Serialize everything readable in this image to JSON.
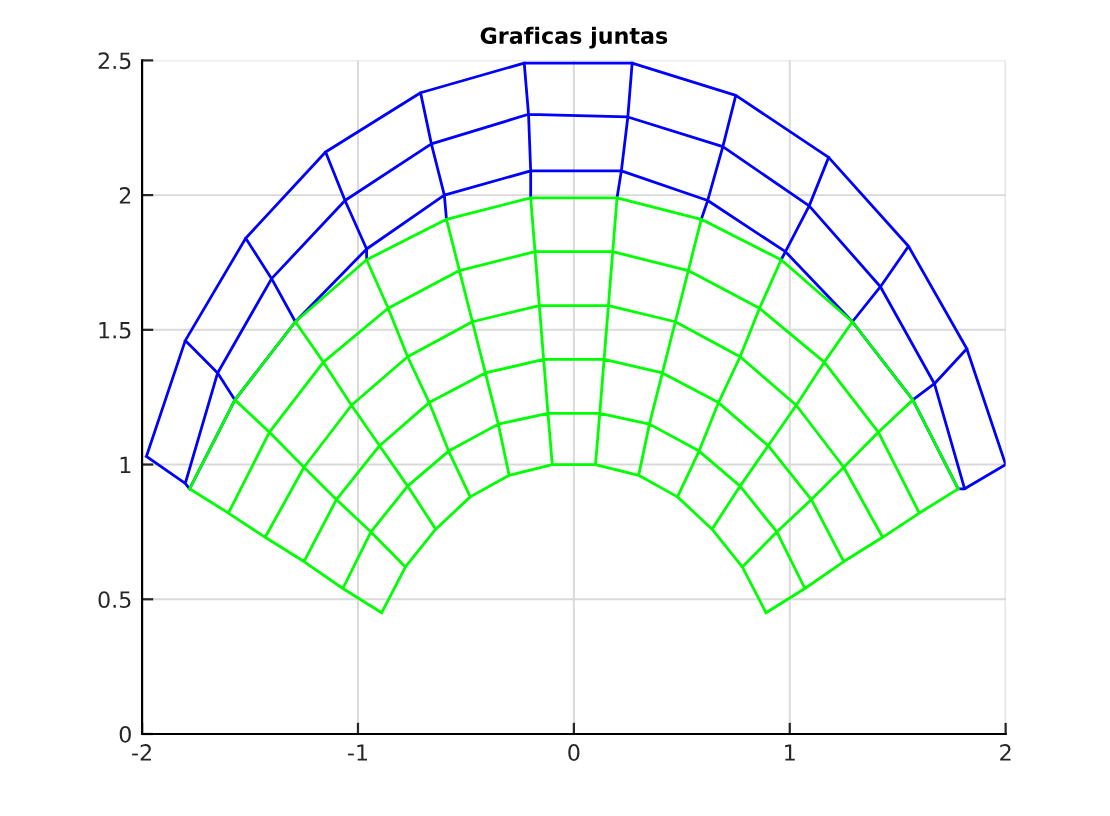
{
  "chart_data": {
    "type": "line",
    "title": "Graficas juntas",
    "xlim": [
      -2,
      2
    ],
    "ylim": [
      0,
      2.5
    ],
    "xticks": [
      -2,
      -1,
      0,
      1,
      2
    ],
    "yticks": [
      0,
      0.5,
      1,
      1.5,
      2,
      2.5
    ],
    "grid": true,
    "line_style": "solid",
    "series": [
      {
        "color": "#0000ff",
        "x": [
          -1.98,
          -1.8,
          -1.52,
          -1.15,
          -0.71,
          -0.23,
          0.27,
          0.75,
          1.18,
          1.55,
          1.82,
          2.0,
          null,
          -1.8,
          -1.65,
          -1.4,
          -1.06,
          -0.66,
          -0.21,
          0.25,
          0.69,
          1.09,
          1.42,
          1.67,
          1.81,
          null,
          -1.78,
          -1.57,
          -1.29,
          -0.96,
          -0.6,
          -0.2,
          0.22,
          0.62,
          0.98,
          1.29,
          1.57,
          1.78,
          null,
          -1.98,
          -1.8,
          -1.78,
          null,
          -1.8,
          -1.65,
          -1.57,
          null,
          -1.52,
          -1.4,
          -1.29,
          null,
          -1.15,
          -1.06,
          -0.96,
          -0.96,
          null,
          -0.71,
          -0.66,
          -0.6,
          -0.59,
          null,
          -0.23,
          -0.21,
          -0.2,
          -0.2,
          null,
          0.27,
          0.25,
          0.22,
          0.2,
          null,
          0.75,
          0.69,
          0.62,
          0.59,
          null,
          1.18,
          1.09,
          0.98,
          0.96,
          null,
          1.55,
          1.42,
          1.29,
          null,
          1.82,
          1.67,
          1.57,
          null,
          2.0,
          1.81,
          1.78
        ],
        "values": [
          1.03,
          1.46,
          1.84,
          2.16,
          2.38,
          2.49,
          2.49,
          2.37,
          2.14,
          1.81,
          1.43,
          1.0,
          null,
          0.93,
          1.34,
          1.69,
          1.98,
          2.19,
          2.3,
          2.29,
          2.18,
          1.96,
          1.66,
          1.3,
          0.91,
          null,
          0.91,
          1.24,
          1.53,
          1.8,
          2.0,
          2.09,
          2.09,
          1.98,
          1.79,
          1.53,
          1.24,
          0.91,
          null,
          1.03,
          0.93,
          0.91,
          null,
          1.46,
          1.34,
          1.24,
          null,
          1.84,
          1.69,
          1.53,
          null,
          2.16,
          1.98,
          1.8,
          1.76,
          null,
          2.38,
          2.19,
          2.0,
          1.91,
          null,
          2.49,
          2.3,
          2.09,
          1.99,
          null,
          2.49,
          2.29,
          2.09,
          1.99,
          null,
          2.37,
          2.18,
          1.98,
          1.91,
          null,
          2.14,
          1.96,
          1.79,
          1.76,
          null,
          1.81,
          1.66,
          1.53,
          null,
          1.43,
          1.3,
          1.24,
          null,
          1.0,
          0.91,
          0.91
        ]
      },
      {
        "color": "#00ff00",
        "x": [
          -0.89,
          -0.78,
          -0.64,
          -0.48,
          -0.3,
          -0.1,
          0.1,
          0.3,
          0.48,
          0.64,
          0.78,
          0.89,
          null,
          -1.07,
          -0.94,
          -0.77,
          -0.58,
          -0.35,
          -0.12,
          0.12,
          0.35,
          0.58,
          0.77,
          0.94,
          1.07,
          null,
          -1.25,
          -1.1,
          -0.9,
          -0.67,
          -0.41,
          -0.14,
          0.14,
          0.41,
          0.67,
          0.9,
          1.1,
          1.25,
          null,
          -1.43,
          -1.25,
          -1.03,
          -0.77,
          -0.47,
          -0.16,
          0.16,
          0.47,
          0.77,
          1.03,
          1.25,
          1.43,
          null,
          -1.6,
          -1.41,
          -1.16,
          -0.86,
          -0.53,
          -0.18,
          0.18,
          0.53,
          0.86,
          1.16,
          1.41,
          1.6,
          null,
          -1.78,
          -1.57,
          -1.29,
          -0.96,
          -0.59,
          -0.2,
          0.2,
          0.59,
          0.96,
          1.29,
          1.57,
          1.78,
          null,
          -0.89,
          -1.07,
          -1.25,
          -1.43,
          -1.6,
          -1.78,
          null,
          -0.78,
          -0.94,
          -1.1,
          -1.25,
          -1.41,
          -1.57,
          null,
          -0.64,
          -0.77,
          -0.9,
          -1.03,
          -1.16,
          -1.29,
          null,
          -0.48,
          -0.58,
          -0.67,
          -0.77,
          -0.86,
          -0.96,
          null,
          -0.3,
          -0.35,
          -0.41,
          -0.47,
          -0.53,
          -0.59,
          null,
          -0.1,
          -0.12,
          -0.14,
          -0.16,
          -0.18,
          -0.2,
          null,
          0.1,
          0.12,
          0.14,
          0.16,
          0.18,
          0.2,
          null,
          0.3,
          0.35,
          0.41,
          0.47,
          0.53,
          0.59,
          null,
          0.48,
          0.58,
          0.67,
          0.77,
          0.86,
          0.96,
          null,
          0.64,
          0.77,
          0.9,
          1.03,
          1.16,
          1.29,
          null,
          0.78,
          0.94,
          1.1,
          1.25,
          1.41,
          1.57,
          null,
          0.89,
          1.07,
          1.25,
          1.43,
          1.6,
          1.78
        ],
        "values": [
          0.45,
          0.62,
          0.76,
          0.88,
          0.96,
          1.0,
          1.0,
          0.96,
          0.88,
          0.76,
          0.62,
          0.45,
          null,
          0.54,
          0.75,
          0.92,
          1.05,
          1.15,
          1.19,
          1.19,
          1.15,
          1.05,
          0.92,
          0.75,
          0.54,
          null,
          0.64,
          0.87,
          1.07,
          1.23,
          1.34,
          1.39,
          1.39,
          1.34,
          1.23,
          1.07,
          0.87,
          0.64,
          null,
          0.73,
          0.99,
          1.22,
          1.4,
          1.53,
          1.59,
          1.59,
          1.53,
          1.4,
          1.22,
          0.99,
          0.73,
          null,
          0.82,
          1.12,
          1.38,
          1.58,
          1.72,
          1.79,
          1.79,
          1.72,
          1.58,
          1.38,
          1.12,
          0.82,
          null,
          0.91,
          1.24,
          1.53,
          1.76,
          1.91,
          1.99,
          1.99,
          1.91,
          1.76,
          1.53,
          1.24,
          0.91,
          null,
          0.45,
          0.54,
          0.64,
          0.73,
          0.82,
          0.91,
          null,
          0.62,
          0.75,
          0.87,
          0.99,
          1.12,
          1.24,
          null,
          0.76,
          0.92,
          1.07,
          1.22,
          1.38,
          1.53,
          null,
          0.88,
          1.05,
          1.23,
          1.4,
          1.58,
          1.76,
          null,
          0.96,
          1.15,
          1.34,
          1.53,
          1.72,
          1.91,
          null,
          1.0,
          1.19,
          1.39,
          1.59,
          1.79,
          1.99,
          null,
          1.0,
          1.19,
          1.39,
          1.59,
          1.79,
          1.99,
          null,
          0.96,
          1.15,
          1.34,
          1.53,
          1.72,
          1.91,
          null,
          0.88,
          1.05,
          1.23,
          1.4,
          1.58,
          1.76,
          null,
          0.76,
          0.92,
          1.07,
          1.22,
          1.38,
          1.53,
          null,
          0.62,
          0.75,
          0.87,
          0.99,
          1.12,
          1.24,
          null,
          0.45,
          0.54,
          0.64,
          0.73,
          0.82,
          0.91
        ]
      }
    ]
  }
}
